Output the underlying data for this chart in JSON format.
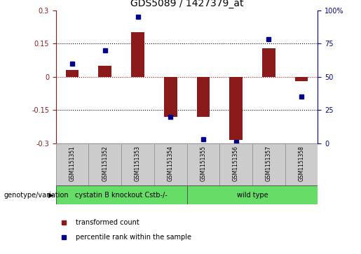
{
  "title": "GDS5089 / 1427379_at",
  "samples": [
    "GSM1151351",
    "GSM1151352",
    "GSM1151353",
    "GSM1151354",
    "GSM1151355",
    "GSM1151356",
    "GSM1151357",
    "GSM1151358"
  ],
  "transformed_count": [
    0.03,
    0.05,
    0.2,
    -0.18,
    -0.18,
    -0.285,
    0.13,
    -0.02
  ],
  "percentile_rank": [
    60,
    70,
    95,
    20,
    3,
    1,
    78,
    35
  ],
  "ylim_left": [
    -0.3,
    0.3
  ],
  "ylim_right": [
    0,
    100
  ],
  "yticks_left": [
    -0.3,
    -0.15,
    0,
    0.15,
    0.3
  ],
  "yticks_right": [
    0,
    25,
    50,
    75,
    100
  ],
  "bar_color": "#8B1A1A",
  "dot_color": "#00008B",
  "zero_line_color": "#CC0000",
  "grid_color": "#000000",
  "group1_label": "cystatin B knockout Cstb-/-",
  "group2_label": "wild type",
  "group1_indices": [
    0,
    1,
    2,
    3
  ],
  "group2_indices": [
    4,
    5,
    6,
    7
  ],
  "group_color": "#66DD66",
  "group_label_prefix": "genotype/variation",
  "legend_bar_label": "transformed count",
  "legend_dot_label": "percentile rank within the sample",
  "title_fontsize": 10,
  "tick_fontsize": 7,
  "label_fontsize": 7,
  "bar_width": 0.4
}
